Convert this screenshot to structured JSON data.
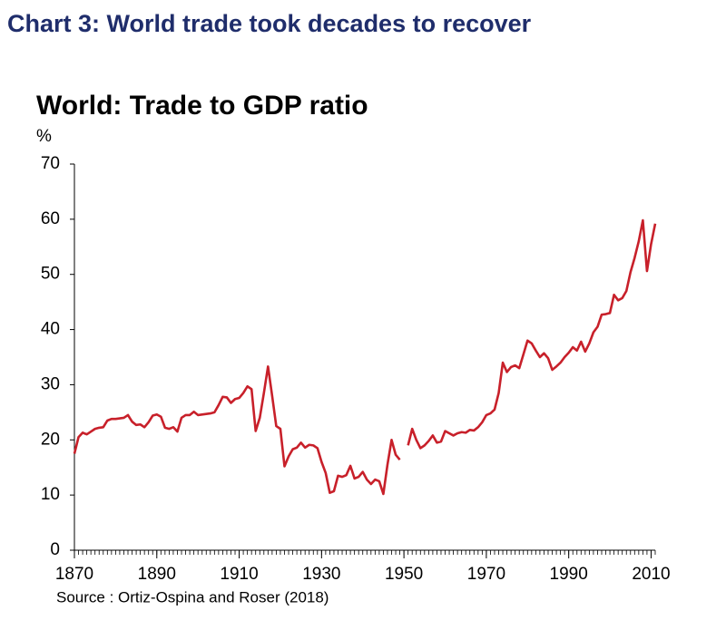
{
  "header": "Chart 3: World trade took decades to recover",
  "chart_data": {
    "type": "line",
    "title": "World: Trade to GDP ratio",
    "y_unit": "%",
    "source": "Source : Ortiz-Ospina and Roser (2018)",
    "x": [
      1870,
      1871,
      1872,
      1873,
      1874,
      1875,
      1876,
      1877,
      1878,
      1879,
      1880,
      1881,
      1882,
      1883,
      1884,
      1885,
      1886,
      1887,
      1888,
      1889,
      1890,
      1891,
      1892,
      1893,
      1894,
      1895,
      1896,
      1897,
      1898,
      1899,
      1900,
      1901,
      1902,
      1903,
      1904,
      1905,
      1906,
      1907,
      1908,
      1909,
      1910,
      1911,
      1912,
      1913,
      1914,
      1915,
      1916,
      1917,
      1918,
      1919,
      1920,
      1921,
      1922,
      1923,
      1924,
      1925,
      1926,
      1927,
      1928,
      1929,
      1930,
      1931,
      1932,
      1933,
      1934,
      1935,
      1936,
      1937,
      1938,
      1939,
      1940,
      1941,
      1942,
      1943,
      1944,
      1945,
      1946,
      1947,
      1948,
      1949,
      1950,
      1951,
      1952,
      1953,
      1954,
      1955,
      1956,
      1957,
      1958,
      1959,
      1960,
      1961,
      1962,
      1963,
      1964,
      1965,
      1966,
      1967,
      1968,
      1969,
      1970,
      1971,
      1972,
      1973,
      1974,
      1975,
      1976,
      1977,
      1978,
      1979,
      1980,
      1981,
      1982,
      1983,
      1984,
      1985,
      1986,
      1987,
      1988,
      1989,
      1990,
      1991,
      1992,
      1993,
      1994,
      1995,
      1996,
      1997,
      1998,
      1999,
      2000,
      2001,
      2002,
      2003,
      2004,
      2005,
      2006,
      2007,
      2008,
      2009,
      2010,
      2011
    ],
    "series": [
      {
        "name": "Trade to GDP ratio",
        "color": "#c8202a",
        "values": [
          17.5,
          20.5,
          21.3,
          21,
          21.5,
          22,
          22.2,
          22.3,
          23.5,
          23.8,
          23.8,
          23.9,
          24,
          24.5,
          23.3,
          22.7,
          22.8,
          22.3,
          23.2,
          24.4,
          24.6,
          24.2,
          22.2,
          22,
          22.3,
          21.5,
          24,
          24.5,
          24.5,
          25.1,
          24.5,
          24.6,
          24.7,
          24.8,
          25,
          26.3,
          27.8,
          27.7,
          26.7,
          27.4,
          27.6,
          28.5,
          29.7,
          29.2,
          21.6,
          24,
          28.5,
          33.3,
          28,
          22.5,
          22,
          15.2,
          17,
          18.3,
          18.6,
          19.5,
          18.6,
          19.1,
          19,
          18.5,
          16,
          14,
          10.4,
          10.7,
          13.5,
          13.3,
          13.6,
          15.3,
          13,
          13.3,
          14.2,
          12.8,
          12,
          12.8,
          12.5,
          10.2,
          15.5,
          20,
          17.3,
          16.4,
          null,
          19,
          22,
          20,
          18.5,
          19,
          19.8,
          20.8,
          19.5,
          19.7,
          21.6,
          21.2,
          20.8,
          21.2,
          21.4,
          21.3,
          21.8,
          21.7,
          22.3,
          23.2,
          24.5,
          24.8,
          25.5,
          28.5,
          34,
          32.3,
          33.2,
          33.5,
          33,
          35.5,
          38,
          37.5,
          36.2,
          35,
          35.7,
          34.8,
          32.7,
          33.3,
          34,
          35,
          35.8,
          36.8,
          36.2,
          37.8,
          36,
          37.5,
          39.5,
          40.5,
          42.7,
          42.8,
          43,
          46.3,
          45.3,
          45.7,
          47,
          50.4,
          53,
          56,
          59.8,
          50.6,
          55.5,
          59.2
        ]
      }
    ],
    "xlim": [
      1870,
      2011
    ],
    "xticks": [
      1870,
      1890,
      1910,
      1930,
      1950,
      1970,
      1990,
      2010
    ],
    "ylim": [
      0,
      70
    ],
    "yticks": [
      0,
      10,
      20,
      30,
      40,
      50,
      60,
      70
    ],
    "grid": false
  }
}
